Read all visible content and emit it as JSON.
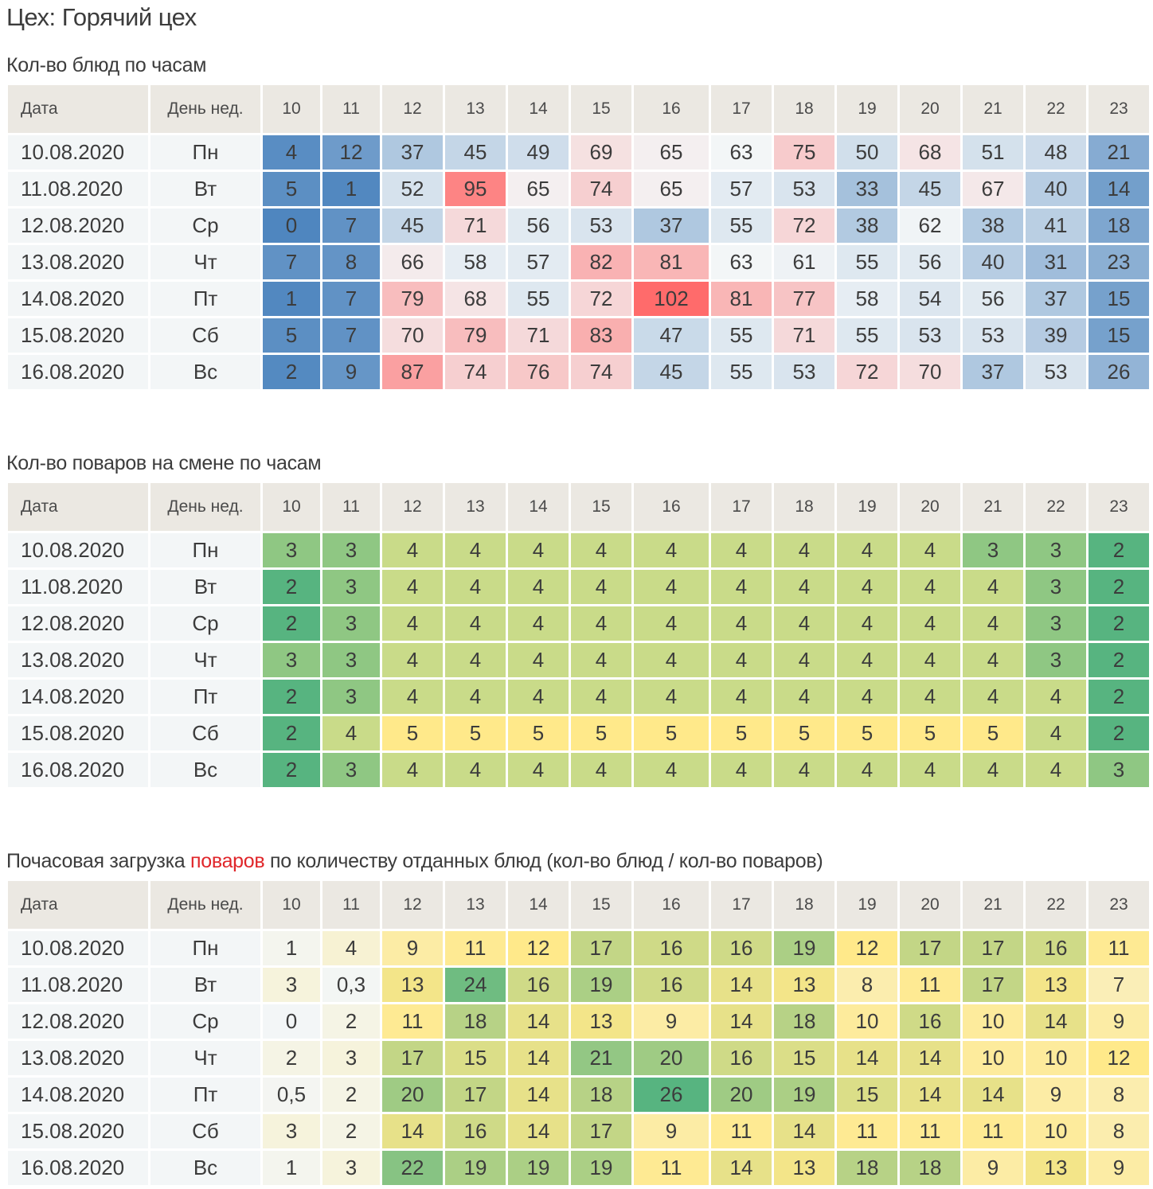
{
  "page": {
    "title": "Цех: Горячий цех"
  },
  "columns": {
    "date": "Дата",
    "weekday": "День нед.",
    "hours": [
      "10",
      "11",
      "12",
      "13",
      "14",
      "15",
      "16",
      "17",
      "18",
      "19",
      "20",
      "21",
      "22",
      "23"
    ]
  },
  "rows_meta": [
    {
      "date": "10.08.2020",
      "weekday": "Пн"
    },
    {
      "date": "11.08.2020",
      "weekday": "Вт"
    },
    {
      "date": "12.08.2020",
      "weekday": "Ср"
    },
    {
      "date": "13.08.2020",
      "weekday": "Чт"
    },
    {
      "date": "14.08.2020",
      "weekday": "Пт"
    },
    {
      "date": "15.08.2020",
      "weekday": "Сб"
    },
    {
      "date": "16.08.2020",
      "weekday": "Вс"
    }
  ],
  "tables": [
    {
      "title": "Кол-во блюд по часам",
      "scale": {
        "type": "diverging",
        "low": "#4f86bf",
        "mid": "#f3f6f7",
        "high": "#ff6b6b",
        "min": 0,
        "mid_value": 63,
        "max": 102
      },
      "values": [
        [
          "4",
          "12",
          "37",
          "45",
          "49",
          "69",
          "65",
          "63",
          "75",
          "50",
          "68",
          "51",
          "48",
          "21"
        ],
        [
          "5",
          "1",
          "52",
          "95",
          "65",
          "74",
          "65",
          "57",
          "53",
          "33",
          "45",
          "67",
          "40",
          "14"
        ],
        [
          "0",
          "7",
          "45",
          "71",
          "56",
          "53",
          "37",
          "55",
          "72",
          "38",
          "62",
          "38",
          "41",
          "18"
        ],
        [
          "7",
          "8",
          "66",
          "58",
          "57",
          "82",
          "81",
          "63",
          "61",
          "55",
          "56",
          "40",
          "31",
          "23"
        ],
        [
          "1",
          "7",
          "79",
          "68",
          "55",
          "72",
          "102",
          "81",
          "77",
          "58",
          "54",
          "56",
          "37",
          "15"
        ],
        [
          "5",
          "7",
          "70",
          "79",
          "71",
          "83",
          "47",
          "55",
          "71",
          "55",
          "53",
          "53",
          "39",
          "15"
        ],
        [
          "2",
          "9",
          "87",
          "74",
          "76",
          "74",
          "45",
          "55",
          "53",
          "72",
          "70",
          "37",
          "53",
          "26"
        ]
      ]
    },
    {
      "title": "Кол-во поваров на смене по часам",
      "scale": {
        "type": "categorical",
        "colors": {
          "2": "#57b480",
          "3": "#8fc783",
          "4": "#c9db89",
          "5": "#ffe98a"
        }
      },
      "values": [
        [
          "3",
          "3",
          "4",
          "4",
          "4",
          "4",
          "4",
          "4",
          "4",
          "4",
          "4",
          "3",
          "3",
          "2"
        ],
        [
          "2",
          "3",
          "4",
          "4",
          "4",
          "4",
          "4",
          "4",
          "4",
          "4",
          "4",
          "4",
          "3",
          "2"
        ],
        [
          "2",
          "3",
          "4",
          "4",
          "4",
          "4",
          "4",
          "4",
          "4",
          "4",
          "4",
          "4",
          "3",
          "2"
        ],
        [
          "3",
          "3",
          "4",
          "4",
          "4",
          "4",
          "4",
          "4",
          "4",
          "4",
          "4",
          "4",
          "3",
          "2"
        ],
        [
          "2",
          "3",
          "4",
          "4",
          "4",
          "4",
          "4",
          "4",
          "4",
          "4",
          "4",
          "4",
          "4",
          "2"
        ],
        [
          "2",
          "4",
          "5",
          "5",
          "5",
          "5",
          "5",
          "5",
          "5",
          "5",
          "5",
          "5",
          "4",
          "2"
        ],
        [
          "2",
          "3",
          "4",
          "4",
          "4",
          "4",
          "4",
          "4",
          "4",
          "4",
          "4",
          "4",
          "4",
          "3"
        ]
      ]
    },
    {
      "title_parts": [
        "Почасовая загрузка ",
        "поваров",
        " по количеству отданных блюд (кол-во блюд / кол-во поваров)"
      ],
      "accent_color": "#e0262a",
      "scale": {
        "type": "sequential",
        "low": "#f3f6f7",
        "mid": "#ffe98a",
        "high": "#57b480",
        "min": 0,
        "mid_value": 12,
        "max": 26
      },
      "values": [
        [
          "1",
          "4",
          "9",
          "11",
          "12",
          "17",
          "16",
          "16",
          "19",
          "12",
          "17",
          "17",
          "16",
          "11"
        ],
        [
          "3",
          "0,3",
          "13",
          "24",
          "16",
          "19",
          "16",
          "14",
          "13",
          "8",
          "11",
          "17",
          "13",
          "7"
        ],
        [
          "0",
          "2",
          "11",
          "18",
          "14",
          "13",
          "9",
          "14",
          "18",
          "10",
          "16",
          "10",
          "14",
          "9"
        ],
        [
          "2",
          "3",
          "17",
          "15",
          "14",
          "21",
          "20",
          "16",
          "15",
          "14",
          "14",
          "10",
          "10",
          "12"
        ],
        [
          "0,5",
          "2",
          "20",
          "17",
          "14",
          "18",
          "26",
          "20",
          "19",
          "15",
          "14",
          "14",
          "9",
          "8"
        ],
        [
          "3",
          "2",
          "14",
          "16",
          "14",
          "17",
          "9",
          "11",
          "14",
          "11",
          "11",
          "11",
          "10",
          "8"
        ],
        [
          "1",
          "3",
          "22",
          "19",
          "19",
          "19",
          "11",
          "14",
          "13",
          "18",
          "18",
          "9",
          "13",
          "9"
        ]
      ]
    }
  ]
}
